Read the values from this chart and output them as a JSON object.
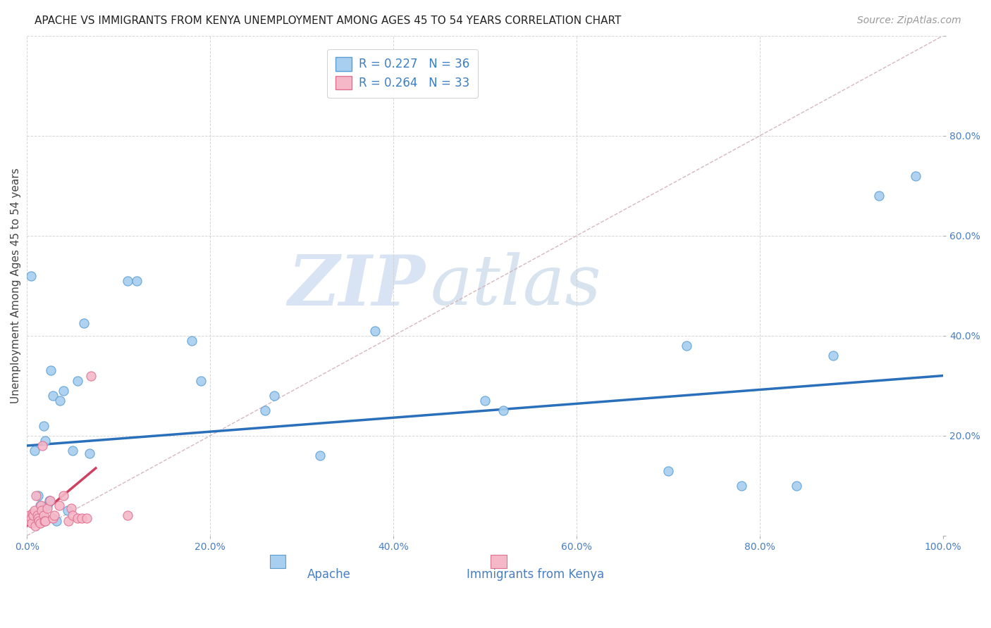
{
  "title": "APACHE VS IMMIGRANTS FROM KENYA UNEMPLOYMENT AMONG AGES 45 TO 54 YEARS CORRELATION CHART",
  "source": "Source: ZipAtlas.com",
  "ylabel": "Unemployment Among Ages 45 to 54 years",
  "xlim": [
    0,
    1.0
  ],
  "ylim": [
    0,
    1.0
  ],
  "xtick_vals": [
    0.0,
    0.2,
    0.4,
    0.6,
    0.8,
    1.0
  ],
  "ytick_vals": [
    0.0,
    0.2,
    0.4,
    0.6,
    0.8,
    1.0
  ],
  "watermark_zip": "ZIP",
  "watermark_atlas": "atlas",
  "legend_r1": "R = 0.227",
  "legend_n1": "N = 36",
  "legend_r2": "R = 0.264",
  "legend_n2": "N = 33",
  "color_apache_fill": "#a8cef0",
  "color_apache_edge": "#5a9fd4",
  "color_kenya_fill": "#f5b8c8",
  "color_kenya_edge": "#e07090",
  "color_apache_trend": "#2a6fba",
  "color_kenya_trend": "#d04060",
  "color_diagonal": "#d0b0b8",
  "apache_x": [
    0.004,
    0.008,
    0.012,
    0.014,
    0.016,
    0.018,
    0.02,
    0.022,
    0.024,
    0.026,
    0.028,
    0.032,
    0.036,
    0.04,
    0.044,
    0.05,
    0.055,
    0.062,
    0.068,
    0.11,
    0.12,
    0.18,
    0.19,
    0.26,
    0.27,
    0.32,
    0.38,
    0.5,
    0.52,
    0.7,
    0.72,
    0.78,
    0.84,
    0.88,
    0.93,
    0.97
  ],
  "apache_y": [
    0.52,
    0.17,
    0.08,
    0.06,
    0.04,
    0.22,
    0.19,
    0.06,
    0.07,
    0.33,
    0.28,
    0.03,
    0.27,
    0.29,
    0.05,
    0.17,
    0.31,
    0.425,
    0.165,
    0.51,
    0.51,
    0.39,
    0.31,
    0.25,
    0.28,
    0.16,
    0.41,
    0.27,
    0.25,
    0.13,
    0.38,
    0.1,
    0.1,
    0.36,
    0.68,
    0.72
  ],
  "kenya_x": [
    0.002,
    0.003,
    0.004,
    0.005,
    0.006,
    0.007,
    0.008,
    0.009,
    0.01,
    0.011,
    0.012,
    0.013,
    0.014,
    0.015,
    0.016,
    0.017,
    0.018,
    0.019,
    0.02,
    0.022,
    0.025,
    0.028,
    0.03,
    0.035,
    0.04,
    0.045,
    0.048,
    0.05,
    0.055,
    0.06,
    0.065,
    0.07,
    0.11
  ],
  "kenya_y": [
    0.04,
    0.03,
    0.035,
    0.025,
    0.045,
    0.04,
    0.05,
    0.02,
    0.08,
    0.04,
    0.035,
    0.03,
    0.025,
    0.06,
    0.05,
    0.18,
    0.04,
    0.03,
    0.03,
    0.055,
    0.07,
    0.035,
    0.04,
    0.06,
    0.08,
    0.03,
    0.055,
    0.04,
    0.035,
    0.035,
    0.035,
    0.32,
    0.04
  ],
  "apache_trend_x": [
    0.0,
    1.0
  ],
  "apache_trend_y": [
    0.18,
    0.32
  ],
  "kenya_trend_x": [
    0.0,
    0.075
  ],
  "kenya_trend_y": [
    0.02,
    0.135
  ],
  "background_color": "#ffffff",
  "title_fontsize": 11,
  "source_fontsize": 10,
  "axis_label_fontsize": 11,
  "tick_fontsize": 10,
  "legend_fontsize": 12,
  "marker_size": 90
}
